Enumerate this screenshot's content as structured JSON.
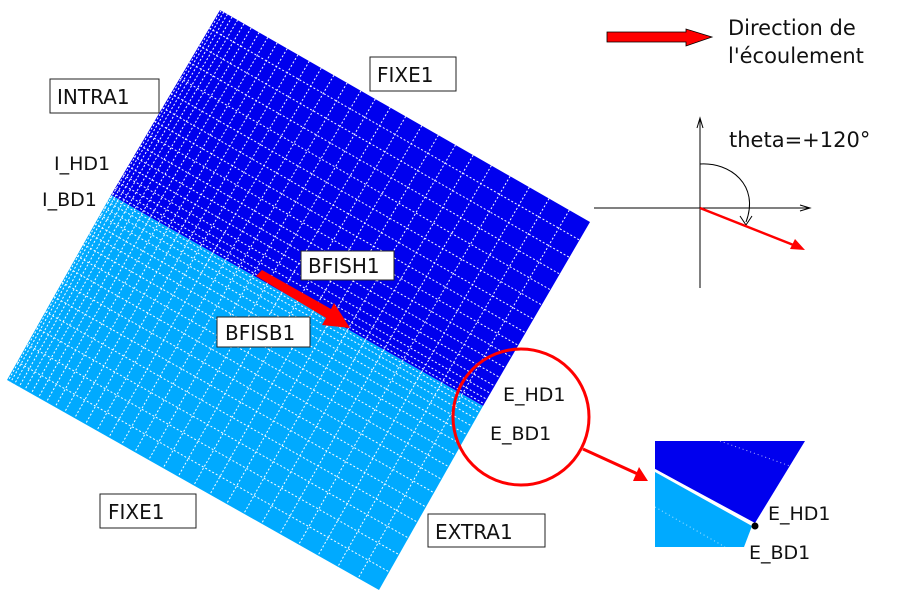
{
  "colors": {
    "upper_region": "#0000ee",
    "lower_region": "#00aaff",
    "flow_arrow": "#ff0000",
    "grid": "#ffffff"
  },
  "legend": {
    "line1": "Direction de",
    "line2": "l'écoulement",
    "icon": "red-arrow-icon"
  },
  "angle": {
    "label": "theta=+120°"
  },
  "labels": {
    "fixe_top": "FIXE1",
    "intra": "INTRA1",
    "i_hd": "I_HD1",
    "i_bd": "I_BD1",
    "bfish": "BFISH1",
    "bfisb": "BFISB1",
    "e_hd": "E_HD1",
    "e_bd": "E_BD1",
    "fixe_bottom": "FIXE1",
    "extra": "EXTRA1"
  },
  "inset": {
    "e_hd": "E_HD1",
    "e_bd": "E_BD1"
  }
}
